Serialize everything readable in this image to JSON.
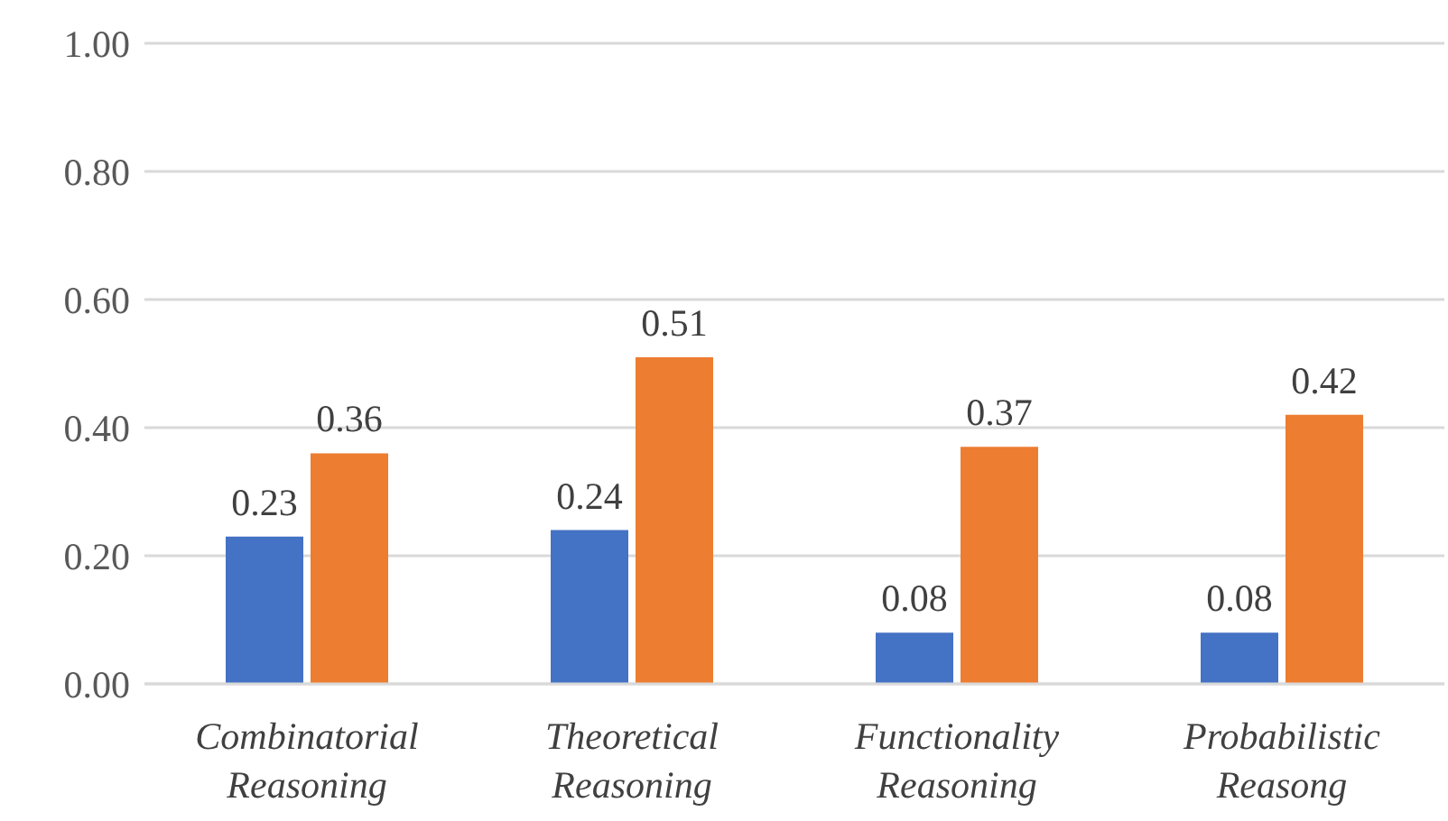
{
  "chart_data": {
    "type": "bar",
    "categories": [
      "Combinatorial Reasoning",
      "Theoretical Reasoning",
      "Functionality Reasoning",
      "Probabilistic Reasong"
    ],
    "series": [
      {
        "color": "#4472c4",
        "values": [
          0.23,
          0.24,
          0.08,
          0.08
        ]
      },
      {
        "color": "#ed7d31",
        "values": [
          0.36,
          0.51,
          0.37,
          0.42
        ]
      }
    ],
    "ylim": [
      0,
      1
    ],
    "yticks": [
      {
        "value": 0,
        "label": "0.00"
      },
      {
        "value": 0.2,
        "label": "0.20"
      },
      {
        "value": 0.4,
        "label": "0.40"
      },
      {
        "value": 0.6,
        "label": "0.60"
      },
      {
        "value": 0.8,
        "label": "0.80"
      },
      {
        "value": 1,
        "label": "1.00"
      }
    ],
    "grid": "y",
    "data_labels": true
  }
}
